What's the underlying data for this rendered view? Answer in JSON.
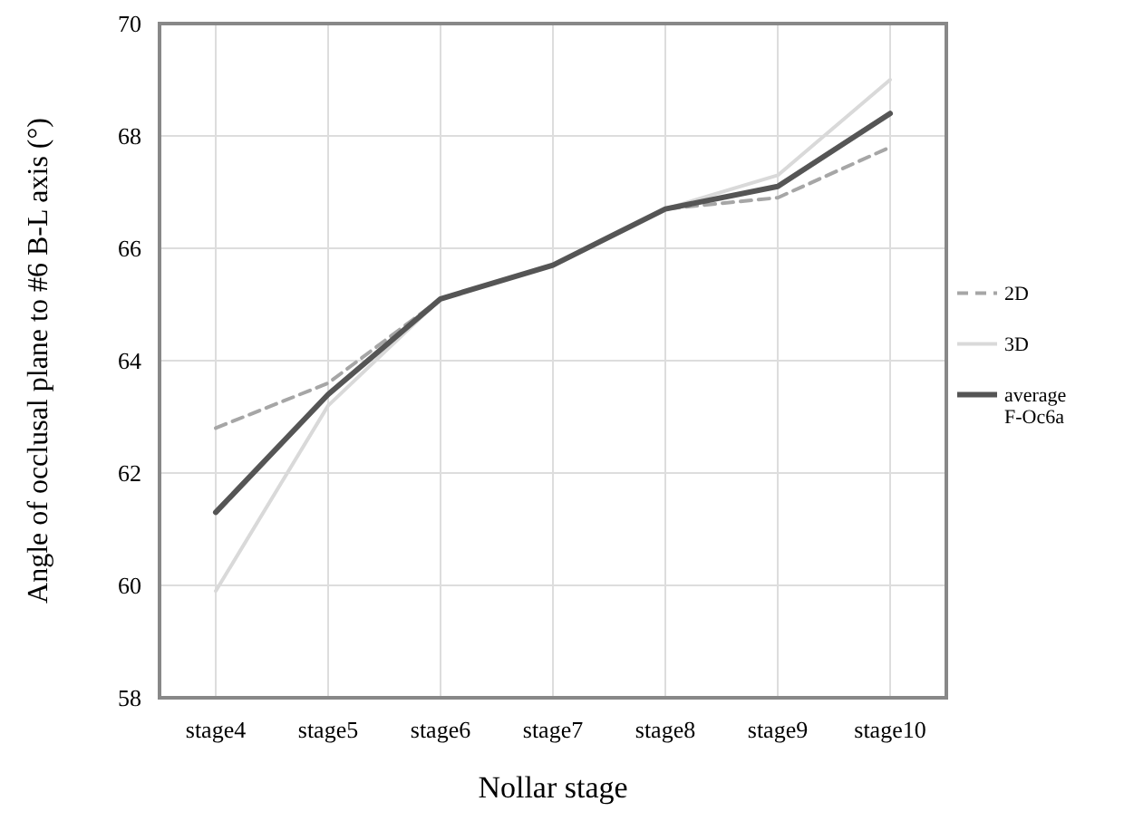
{
  "chart_data": {
    "type": "line",
    "xlabel": "Nollar stage",
    "ylabel": "Angle of occlusal plane to #6 B-L axis (°)",
    "categories": [
      "stage4",
      "stage5",
      "stage6",
      "stage7",
      "stage8",
      "stage9",
      "stage10"
    ],
    "series": [
      {
        "name": "2D",
        "color": "#a6a6a6",
        "line_style": "dashed",
        "values": [
          62.8,
          63.6,
          65.1,
          65.7,
          66.7,
          66.9,
          67.8
        ]
      },
      {
        "name": "3D",
        "color": "#d9d9d9",
        "line_style": "solid",
        "values": [
          59.9,
          63.2,
          65.1,
          65.7,
          66.7,
          67.3,
          69.0
        ]
      },
      {
        "name": "average F-Oc6a",
        "color": "#555555",
        "line_style": "solid",
        "values": [
          61.3,
          63.4,
          65.1,
          65.7,
          66.7,
          67.1,
          68.4
        ]
      }
    ],
    "ylim": [
      58,
      70
    ],
    "yticks": [
      58,
      60,
      62,
      64,
      66,
      68,
      70
    ],
    "grid": true,
    "legend": "right",
    "marker": "none"
  }
}
